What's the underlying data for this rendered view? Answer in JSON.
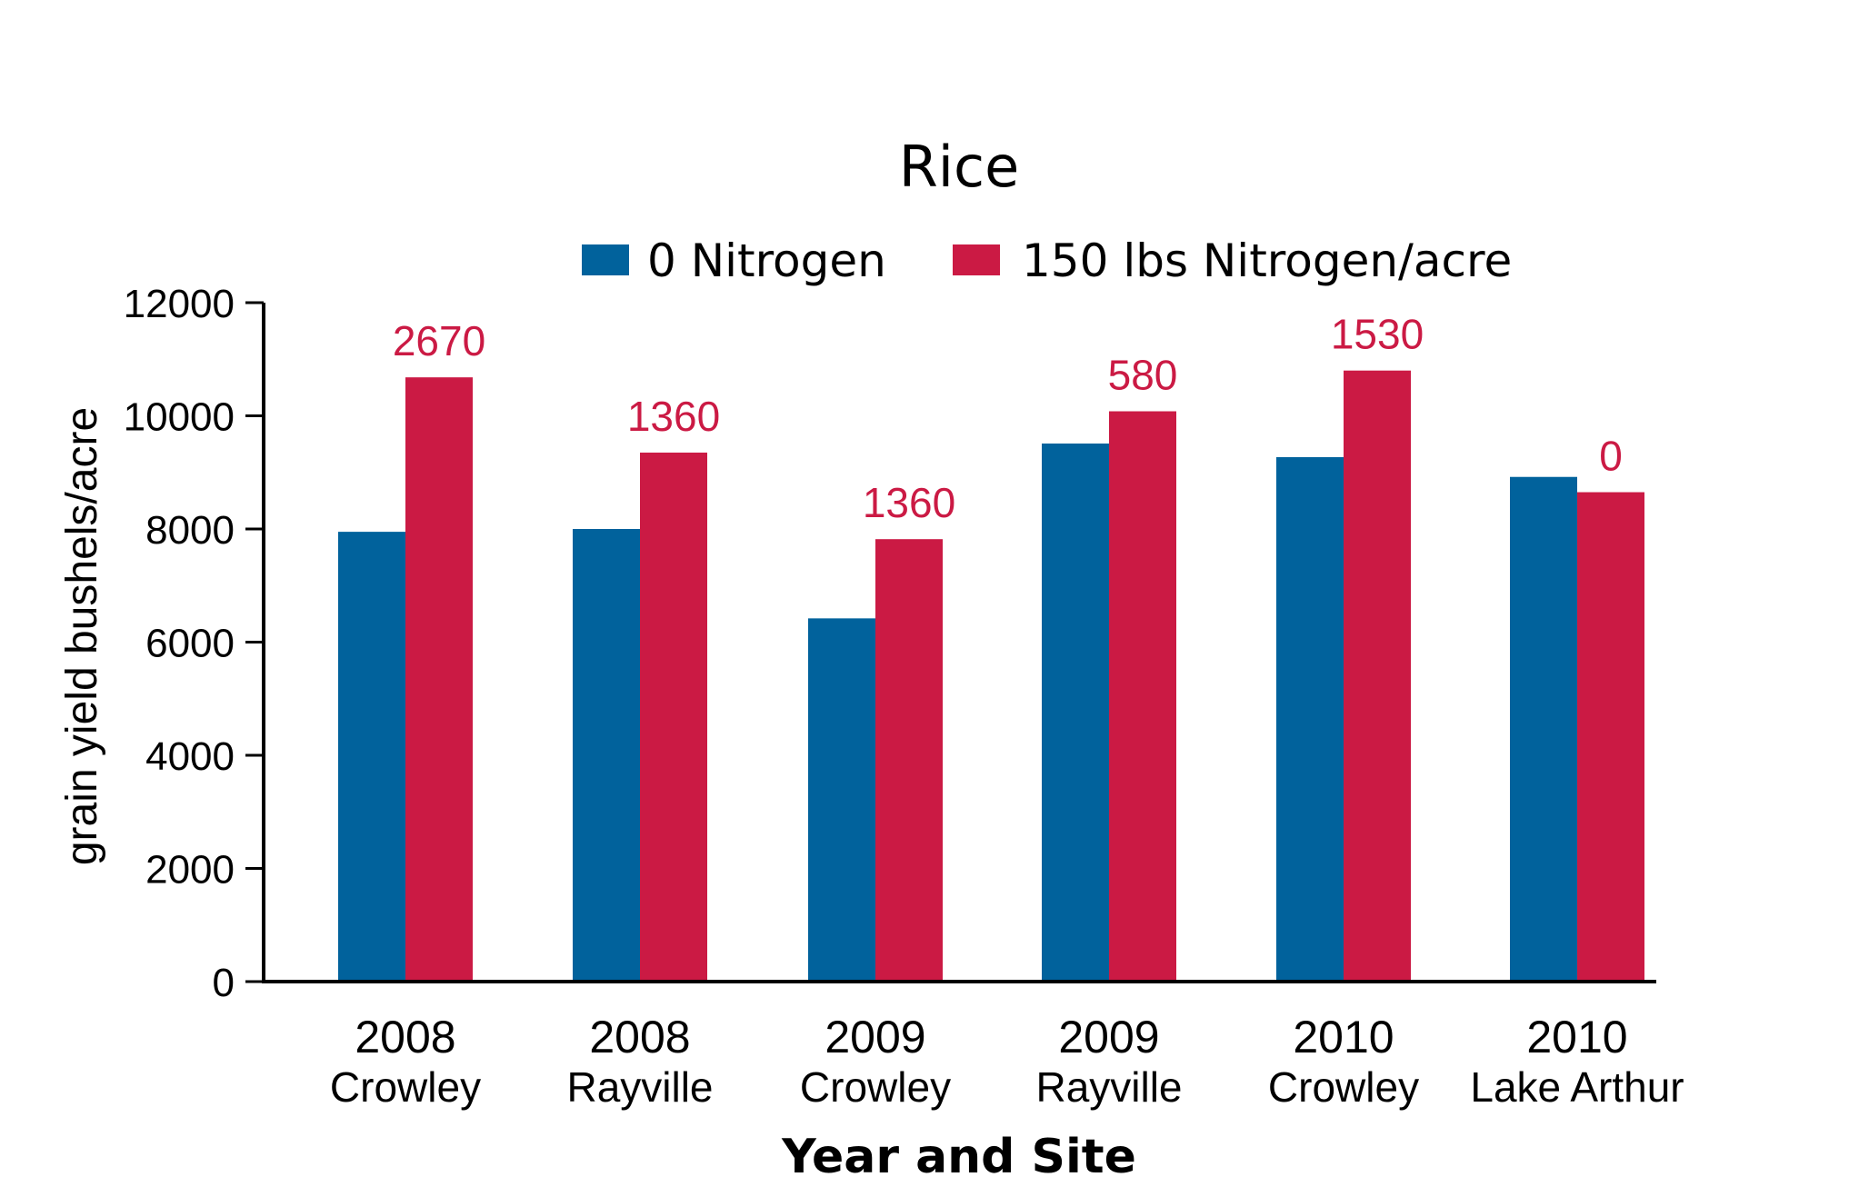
{
  "chart_data": {
    "type": "bar",
    "title": "Rice",
    "xlabel": "Year and Site",
    "ylabel": "grain yield  bushels/acre",
    "ylim": [
      0,
      12000
    ],
    "yticks": [
      0,
      2000,
      4000,
      6000,
      8000,
      10000,
      12000
    ],
    "categories": [
      {
        "year": "2008",
        "site": "Crowley"
      },
      {
        "year": "2008",
        "site": "Rayville"
      },
      {
        "year": "2009",
        "site": "Crowley"
      },
      {
        "year": "2009",
        "site": "Rayville"
      },
      {
        "year": "2010",
        "site": "Crowley"
      },
      {
        "year": "2010",
        "site": "Lake Arthur"
      }
    ],
    "series": [
      {
        "name": "0 Nitrogen",
        "color": "#01629c",
        "values": [
          7950,
          8000,
          6420,
          9510,
          9270,
          8920
        ]
      },
      {
        "name": "150 lbs Nitrogen/acre",
        "color": "#cb1a44",
        "values": [
          10680,
          9350,
          7820,
          10080,
          10800,
          8650
        ]
      }
    ],
    "data_labels": [
      "2670",
      "1360",
      "1360",
      "580",
      "1530",
      "0"
    ],
    "data_label_color": "#cb1a44",
    "legend_position": "top-center",
    "grid": false
  }
}
